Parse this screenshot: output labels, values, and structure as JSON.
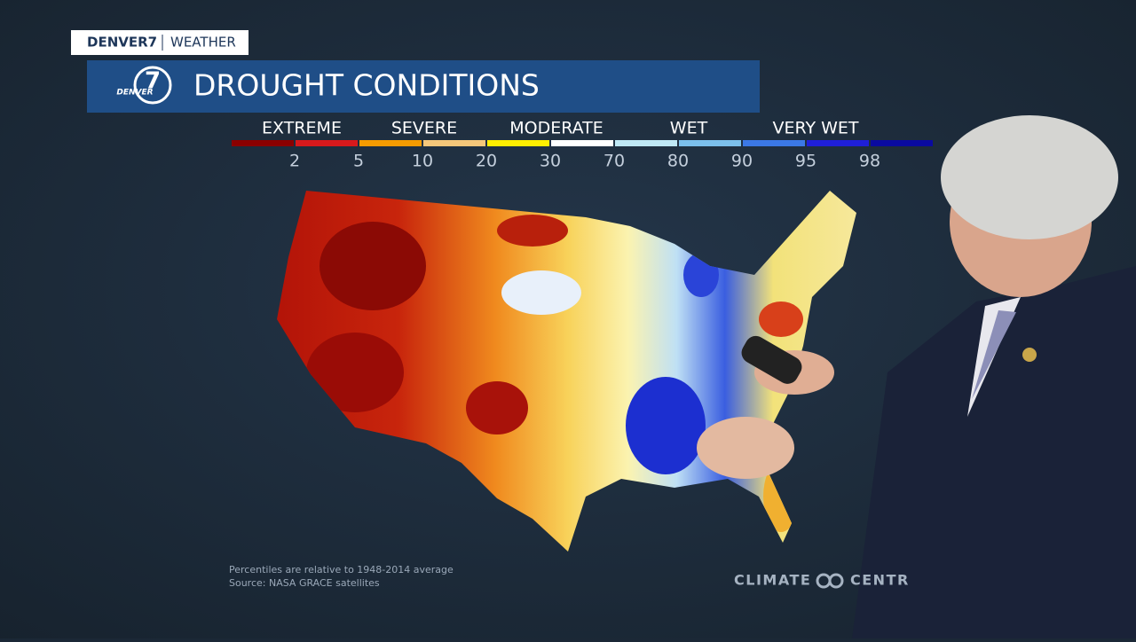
{
  "brand": {
    "station": "DENVER7",
    "section": "WEATHER",
    "logo_numeral": "7",
    "logo_name": "DENVER"
  },
  "title": "DROUGHT CONDITIONS",
  "legend": {
    "categories": [
      "EXTREME",
      "SEVERE",
      "MODERATE",
      "WET",
      "VERY WET"
    ],
    "percentiles": [
      2,
      5,
      10,
      20,
      30,
      70,
      80,
      90,
      95,
      98
    ]
  },
  "notes": [
    "Percentiles are relative to 1948-2014 average",
    "Source: NASA GRACE satellites"
  ],
  "credit": [
    "CLIMATE",
    "CENTR"
  ]
}
